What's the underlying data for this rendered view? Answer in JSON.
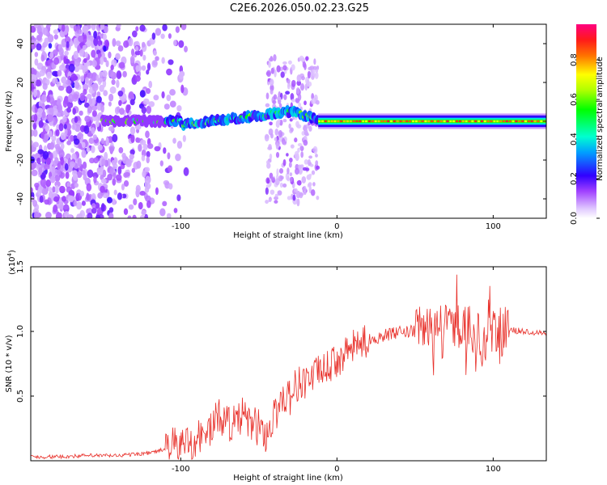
{
  "chart_data": [
    {
      "type": "heatmap",
      "title": "C2E6.2026.050.02.23.G25",
      "xlabel": "Height of straight line (km)",
      "ylabel": "Frequency (Hz)",
      "xlim": [
        -196,
        134
      ],
      "ylim": [
        -50,
        50
      ],
      "x_ticks": [
        -100,
        0,
        100
      ],
      "x_tick_labels": [
        "-100",
        "0",
        "100"
      ],
      "y_ticks": [
        40,
        20,
        0,
        -20,
        -40
      ],
      "y_tick_labels": [
        "40",
        "20",
        "0",
        "-20",
        "-40"
      ],
      "colorbar": {
        "label": "Normalized spectral amplitude",
        "range": [
          0.0,
          0.98
        ],
        "ticks": [
          0.0,
          0.2,
          0.4,
          0.6,
          0.8
        ],
        "tick_labels": [
          "0.0",
          "0.2",
          "0.4",
          "0.6",
          "0.8"
        ]
      }
    },
    {
      "type": "line",
      "xlabel": "Height of straight line (km)",
      "ylabel": "SNR (10 * v/v)",
      "y_scale_label": "(x10",
      "y_scale_exp": "4",
      "y_scale_close": ")",
      "xlim": [
        -196,
        134
      ],
      "ylim": [
        0,
        15000
      ],
      "x_ticks": [
        -100,
        0,
        100
      ],
      "x_tick_labels": [
        "-100",
        "0",
        "100"
      ],
      "y_ticks": [
        5000,
        10000,
        15000
      ],
      "y_tick_labels": [
        "0.5",
        "1.0",
        "1.5"
      ],
      "color": "#e8302a",
      "series": [
        {
          "name": "SNR",
          "x": [
            -196,
            -180,
            -160,
            -140,
            -120,
            -110,
            -100,
            -95,
            -90,
            -85,
            -80,
            -75,
            -70,
            -65,
            -60,
            -55,
            -50,
            -45,
            -40,
            -35,
            -30,
            -25,
            -20,
            -15,
            -10,
            -5,
            0,
            5,
            10,
            20,
            30,
            40,
            50,
            60,
            70,
            80,
            85,
            90,
            95,
            97,
            100,
            103,
            106,
            110,
            120,
            134
          ],
          "values": [
            300,
            300,
            400,
            400,
            600,
            900,
            1300,
            1400,
            1700,
            2000,
            2600,
            3500,
            3000,
            2800,
            3500,
            2800,
            2600,
            2000,
            3400,
            5000,
            5000,
            6000,
            6200,
            6600,
            7000,
            7300,
            7700,
            8200,
            8800,
            9300,
            9700,
            9900,
            10000,
            10600,
            10400,
            10500,
            10300,
            9800,
            8300,
            10800,
            9800,
            10100,
            10000,
            10100,
            10000,
            9900
          ]
        }
      ]
    }
  ]
}
